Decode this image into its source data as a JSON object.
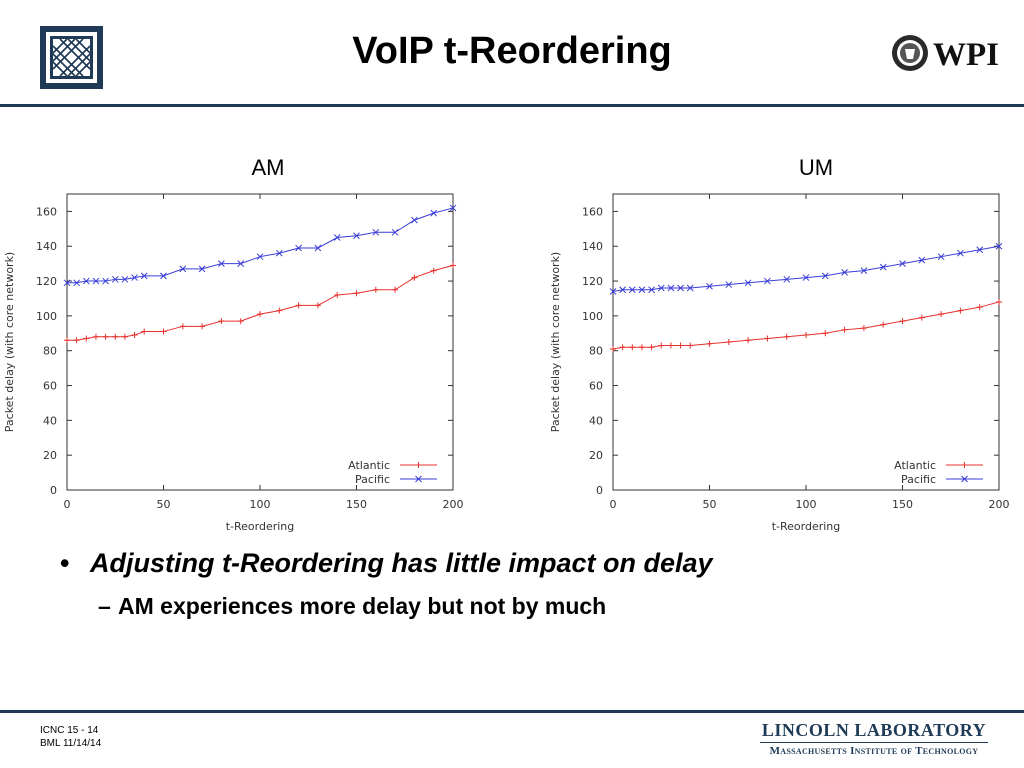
{
  "slide": {
    "title": "VoIP t-Reordering",
    "left_logo": "mit-ll-logo",
    "right_logo_text": "WPI",
    "bullets": {
      "main": "Adjusting t-Reordering has little impact on delay",
      "sub": "AM experiences more delay but not by much",
      "bullet_symbol": "•",
      "dash_symbol": "–"
    },
    "footer": {
      "line1": "ICNC 15 - 14",
      "line2": "BML  11/14/14",
      "lab_name": "LINCOLN LABORATORY",
      "lab_sub": "Massachusetts Institute of Technology"
    }
  },
  "chart_data": [
    {
      "type": "line",
      "label": "AM",
      "xlabel": "t-Reordering",
      "ylabel": "Packet delay (with core network)",
      "xlim": [
        0,
        200
      ],
      "ylim": [
        0,
        170
      ],
      "xticks": [
        0,
        50,
        100,
        150,
        200
      ],
      "yticks": [
        0,
        20,
        40,
        60,
        80,
        100,
        120,
        140,
        160
      ],
      "legend_position": "bottom-right",
      "x": [
        0,
        5,
        10,
        15,
        20,
        25,
        30,
        35,
        40,
        50,
        60,
        70,
        80,
        90,
        100,
        110,
        120,
        130,
        140,
        150,
        160,
        170,
        180,
        190,
        200
      ],
      "series": [
        {
          "name": "Atlantic",
          "color": "#e8302c",
          "marker": "plus",
          "values": [
            86,
            86,
            87,
            88,
            88,
            88,
            88,
            89,
            91,
            91,
            94,
            94,
            97,
            97,
            101,
            103,
            106,
            106,
            112,
            113,
            115,
            115,
            122,
            126,
            129
          ]
        },
        {
          "name": "Pacific",
          "color": "#3a3ed8",
          "marker": "cross",
          "values": [
            119,
            119,
            120,
            120,
            120,
            121,
            121,
            122,
            123,
            123,
            127,
            127,
            130,
            130,
            134,
            136,
            139,
            139,
            145,
            146,
            148,
            148,
            155,
            159,
            162
          ]
        }
      ]
    },
    {
      "type": "line",
      "label": "UM",
      "xlabel": "t-Reordering",
      "ylabel": "Packet delay (with core network)",
      "xlim": [
        0,
        200
      ],
      "ylim": [
        0,
        170
      ],
      "xticks": [
        0,
        50,
        100,
        150,
        200
      ],
      "yticks": [
        0,
        20,
        40,
        60,
        80,
        100,
        120,
        140,
        160
      ],
      "legend_position": "bottom-right",
      "x": [
        0,
        5,
        10,
        15,
        20,
        25,
        30,
        35,
        40,
        50,
        60,
        70,
        80,
        90,
        100,
        110,
        120,
        130,
        140,
        150,
        160,
        170,
        180,
        190,
        200
      ],
      "series": [
        {
          "name": "Atlantic",
          "color": "#e8302c",
          "marker": "plus",
          "values": [
            81,
            82,
            82,
            82,
            82,
            83,
            83,
            83,
            83,
            84,
            85,
            86,
            87,
            88,
            89,
            90,
            92,
            93,
            95,
            97,
            99,
            101,
            103,
            105,
            108
          ]
        },
        {
          "name": "Pacific",
          "color": "#3a3ed8",
          "marker": "cross",
          "values": [
            114,
            115,
            115,
            115,
            115,
            116,
            116,
            116,
            116,
            117,
            118,
            119,
            120,
            121,
            122,
            123,
            125,
            126,
            128,
            130,
            132,
            134,
            136,
            138,
            140
          ]
        }
      ]
    }
  ]
}
